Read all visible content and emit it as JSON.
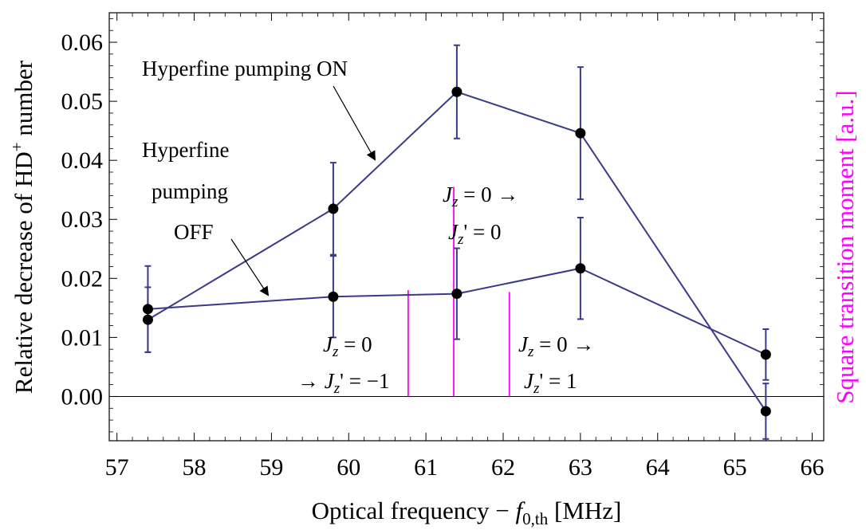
{
  "chart_data": {
    "type": "line",
    "xlabel": "Optical frequency − f0,th [MHz]",
    "ylabel": "Relative decrease of HD⁺ number",
    "y2label": "Square transition moment [a.u.]",
    "xlim": [
      56.9,
      66.15
    ],
    "ylim": [
      -0.0075,
      0.065
    ],
    "x_ticks": [
      "57",
      "58",
      "59",
      "60",
      "61",
      "62",
      "63",
      "64",
      "65",
      "66"
    ],
    "y_ticks": [
      "0.00",
      "0.01",
      "0.02",
      "0.03",
      "0.04",
      "0.05",
      "0.06"
    ],
    "series": [
      {
        "x": [
          57.4,
          59.8,
          61.4,
          63.0,
          65.4
        ],
        "values": [
          0.013,
          0.0318,
          0.0516,
          0.0446,
          -0.0025
        ],
        "err": [
          0.0055,
          0.0078,
          0.0079,
          0.0112,
          0.0047
        ]
      },
      {
        "x": [
          57.4,
          59.8,
          61.4,
          63.0,
          65.4
        ],
        "values": [
          0.0148,
          0.0169,
          0.0174,
          0.0217,
          0.0071
        ],
        "err": [
          0.0073,
          0.0069,
          0.0077,
          0.0086,
          0.0043
        ]
      }
    ],
    "transition_lines": [
      {
        "x": 60.77,
        "height": 0.018
      },
      {
        "x": 61.36,
        "height": 0.0355
      },
      {
        "x": 62.08,
        "height": 0.0177
      }
    ],
    "annotations": {
      "on": "Hyperfine pumping ON",
      "off": [
        "Hyperfine",
        "pumping",
        "OFF"
      ],
      "jz0_jz0": [
        "J_z = 0 →",
        "J_z' = 0"
      ],
      "jz0_jzm1": [
        "J_z = 0",
        "→ J_z' = −1"
      ],
      "jz0_jz1": [
        "J_z = 0 →",
        "J_z' = 1"
      ]
    },
    "colors": {
      "series": "#3a3a8c",
      "marker": "#000000",
      "transition": "#ff00ff",
      "y2label": "#ff00ff"
    }
  }
}
